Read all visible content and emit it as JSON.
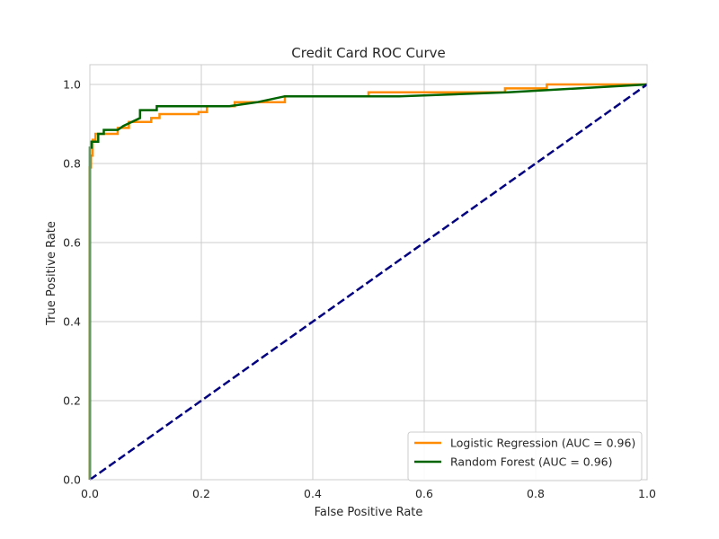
{
  "chart_data": {
    "type": "line",
    "title": "Credit Card ROC Curve",
    "xlabel": "False Positive Rate",
    "ylabel": "True Positive Rate",
    "xlim": [
      0.0,
      1.0
    ],
    "ylim": [
      0.0,
      1.05
    ],
    "xticks": [
      0.0,
      0.2,
      0.4,
      0.6,
      0.8,
      1.0
    ],
    "xtick_labels": [
      "0.0",
      "0.2",
      "0.4",
      "0.6",
      "0.8",
      "1.0"
    ],
    "yticks": [
      0.0,
      0.2,
      0.4,
      0.6,
      0.8,
      1.0
    ],
    "ytick_labels": [
      "0.0",
      "0.2",
      "0.4",
      "0.6",
      "0.8",
      "1.0"
    ],
    "grid": true,
    "legend_position": "bottom-right",
    "series": [
      {
        "name": "Logistic Regression (AUC = 0.96)",
        "color": "#ff8c00",
        "dashed": false,
        "x": [
          0.0,
          0.0,
          0.002,
          0.002,
          0.005,
          0.005,
          0.01,
          0.01,
          0.05,
          0.05,
          0.07,
          0.07,
          0.11,
          0.11,
          0.125,
          0.125,
          0.195,
          0.195,
          0.21,
          0.21,
          0.26,
          0.26,
          0.35,
          0.35,
          0.5,
          0.5,
          0.745,
          0.745,
          0.82,
          0.82,
          1.0
        ],
        "y": [
          0.0,
          0.79,
          0.79,
          0.82,
          0.82,
          0.86,
          0.86,
          0.875,
          0.875,
          0.89,
          0.89,
          0.905,
          0.905,
          0.915,
          0.915,
          0.925,
          0.925,
          0.93,
          0.93,
          0.945,
          0.945,
          0.955,
          0.955,
          0.97,
          0.97,
          0.98,
          0.98,
          0.99,
          0.99,
          1.0,
          1.0
        ]
      },
      {
        "name": "Random Forest (AUC = 0.96)",
        "color": "#006400",
        "dashed": false,
        "x": [
          0.0,
          0.0,
          0.003,
          0.003,
          0.015,
          0.015,
          0.025,
          0.025,
          0.05,
          0.06,
          0.09,
          0.09,
          0.12,
          0.12,
          0.25,
          0.3,
          0.35,
          0.555,
          0.75,
          1.0
        ],
        "y": [
          0.0,
          0.84,
          0.84,
          0.855,
          0.855,
          0.875,
          0.875,
          0.885,
          0.885,
          0.895,
          0.915,
          0.935,
          0.935,
          0.945,
          0.945,
          0.955,
          0.97,
          0.97,
          0.98,
          1.0
        ]
      },
      {
        "color": "#000080",
        "dashed": true,
        "x": [
          0.0,
          1.0
        ],
        "y": [
          0.0,
          1.0
        ]
      }
    ]
  }
}
